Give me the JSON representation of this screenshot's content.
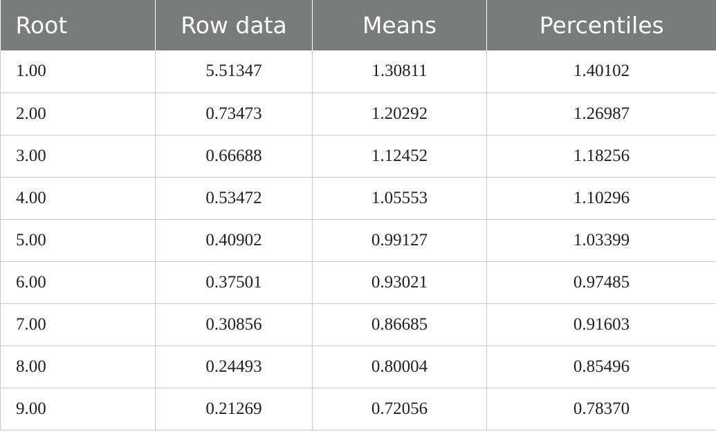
{
  "table": {
    "headers": [
      "Root",
      "Row data",
      "Means",
      "Percentiles"
    ],
    "rows": [
      [
        "1.00",
        "5.51347",
        "1.30811",
        "1.40102"
      ],
      [
        "2.00",
        "0.73473",
        "1.20292",
        "1.26987"
      ],
      [
        "3.00",
        "0.66688",
        "1.12452",
        "1.18256"
      ],
      [
        "4.00",
        "0.53472",
        "1.05553",
        "1.10296"
      ],
      [
        "5.00",
        "0.40902",
        "0.99127",
        "1.03399"
      ],
      [
        "6.00",
        "0.37501",
        "0.93021",
        "0.97485"
      ],
      [
        "7.00",
        "0.30856",
        "0.86685",
        "0.91603"
      ],
      [
        "8.00",
        "0.24493",
        "0.80004",
        "0.85496"
      ],
      [
        "9.00",
        "0.21269",
        "0.72056",
        "0.78370"
      ]
    ],
    "colors": {
      "header_background": "#7a7b7b",
      "header_text": "#ffffff",
      "border": "#c9c9c9"
    }
  }
}
